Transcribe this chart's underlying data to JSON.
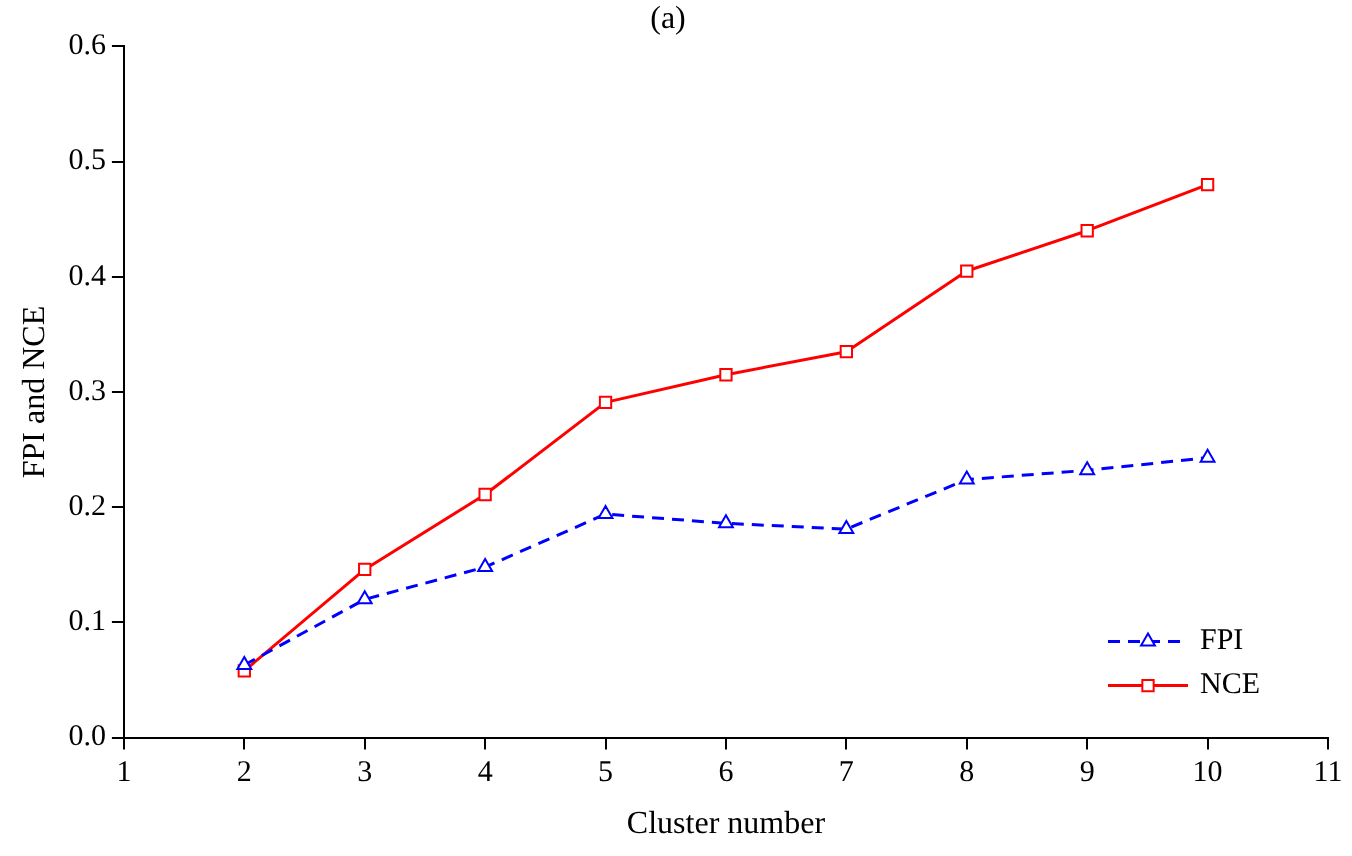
{
  "chart_data": {
    "type": "line",
    "title": "(a)",
    "xlabel": "Cluster number",
    "ylabel": "FPI and NCE",
    "x": [
      2,
      3,
      4,
      5,
      6,
      7,
      8,
      9,
      10
    ],
    "series": [
      {
        "name": "FPI",
        "color": "#0000ff",
        "marker": "triangle",
        "line_style": "dashed",
        "values": [
          0.063,
          0.12,
          0.148,
          0.194,
          0.186,
          0.181,
          0.224,
          0.232,
          0.243
        ]
      },
      {
        "name": "NCE",
        "color": "#ff0000",
        "marker": "square",
        "line_style": "solid",
        "values": [
          0.058,
          0.146,
          0.211,
          0.291,
          0.315,
          0.335,
          0.405,
          0.44,
          0.48
        ]
      }
    ],
    "xlim": [
      1,
      11
    ],
    "xticks": [
      1,
      2,
      3,
      4,
      5,
      6,
      7,
      8,
      9,
      10,
      11
    ],
    "ylim": [
      0,
      0.6
    ],
    "yticks": [
      {
        "value": 0,
        "label": "0.0"
      },
      0.1,
      0.2,
      0.3,
      0.4,
      0.5,
      0.6
    ],
    "grid": false,
    "legend": "bottom right"
  }
}
